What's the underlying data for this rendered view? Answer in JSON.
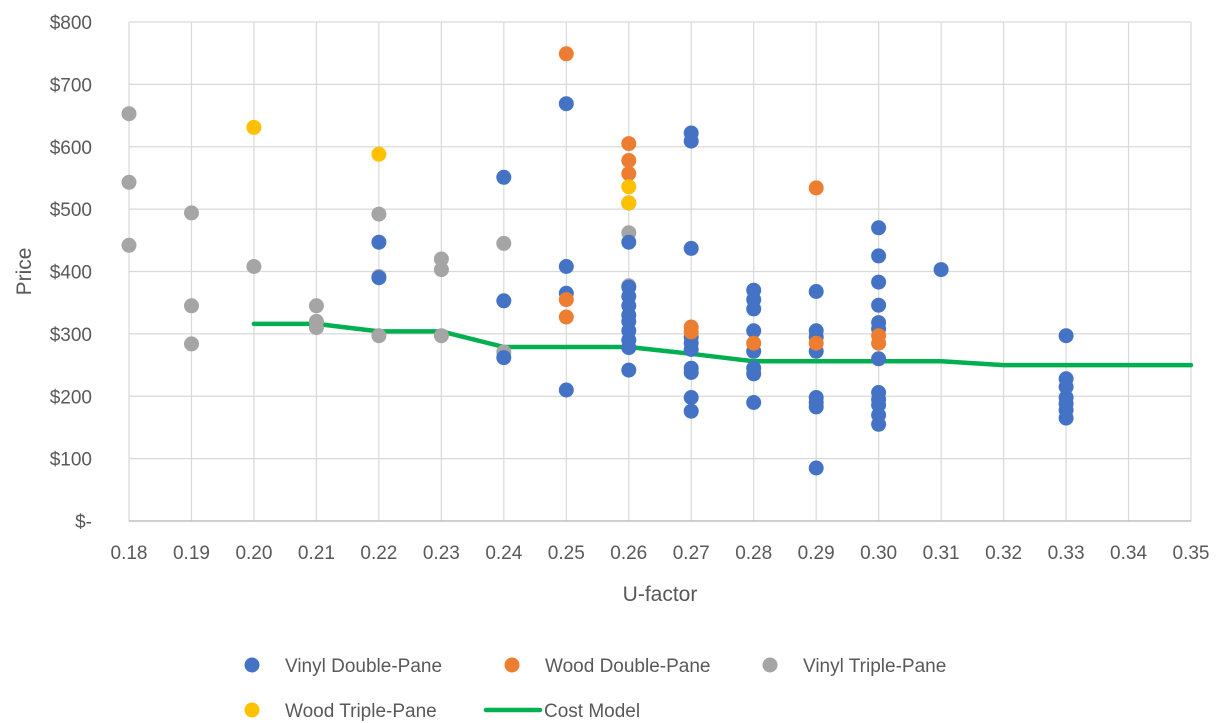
{
  "chart_data": {
    "type": "scatter",
    "title": "",
    "xlabel": "U-factor",
    "ylabel": "Price",
    "xlim": [
      0.18,
      0.35
    ],
    "ylim": [
      0,
      800
    ],
    "grid": true,
    "legend_position": "bottom",
    "x_ticks": [
      "0.18",
      "0.19",
      "0.20",
      "0.21",
      "0.22",
      "0.23",
      "0.24",
      "0.25",
      "0.26",
      "0.27",
      "0.28",
      "0.29",
      "0.30",
      "0.31",
      "0.32",
      "0.33",
      "0.34",
      "0.35"
    ],
    "y_ticks": [
      {
        "value": 0,
        "label": "$-"
      },
      {
        "value": 100,
        "label": "$100"
      },
      {
        "value": 200,
        "label": "$200"
      },
      {
        "value": 300,
        "label": "$300"
      },
      {
        "value": 400,
        "label": "$400"
      },
      {
        "value": 500,
        "label": "$500"
      },
      {
        "value": 600,
        "label": "$600"
      },
      {
        "value": 700,
        "label": "$700"
      },
      {
        "value": 800,
        "label": "$800"
      }
    ],
    "series": [
      {
        "name": "Vinyl Triple-Pane",
        "kind": "scatter",
        "color": "#a5a5a5",
        "points": [
          [
            0.18,
            653
          ],
          [
            0.18,
            543
          ],
          [
            0.18,
            442
          ],
          [
            0.19,
            494
          ],
          [
            0.19,
            345
          ],
          [
            0.19,
            284
          ],
          [
            0.2,
            408
          ],
          [
            0.21,
            345
          ],
          [
            0.21,
            320
          ],
          [
            0.21,
            310
          ],
          [
            0.22,
            492
          ],
          [
            0.22,
            392
          ],
          [
            0.22,
            297
          ],
          [
            0.23,
            420
          ],
          [
            0.23,
            403
          ],
          [
            0.23,
            297
          ],
          [
            0.24,
            445
          ],
          [
            0.24,
            271
          ],
          [
            0.26,
            462
          ],
          [
            0.26,
            377
          ]
        ]
      },
      {
        "name": "Vinyl Double-Pane",
        "kind": "scatter",
        "color": "#4472c4",
        "points": [
          [
            0.22,
            447
          ],
          [
            0.22,
            390
          ],
          [
            0.24,
            551
          ],
          [
            0.24,
            353
          ],
          [
            0.24,
            262
          ],
          [
            0.25,
            669
          ],
          [
            0.25,
            408
          ],
          [
            0.25,
            365
          ],
          [
            0.25,
            210
          ],
          [
            0.26,
            510
          ],
          [
            0.26,
            447
          ],
          [
            0.26,
            375
          ],
          [
            0.26,
            360
          ],
          [
            0.26,
            345
          ],
          [
            0.26,
            330
          ],
          [
            0.26,
            320
          ],
          [
            0.26,
            305
          ],
          [
            0.26,
            290
          ],
          [
            0.26,
            278
          ],
          [
            0.26,
            242
          ],
          [
            0.27,
            622
          ],
          [
            0.27,
            609
          ],
          [
            0.27,
            437
          ],
          [
            0.27,
            295
          ],
          [
            0.27,
            285
          ],
          [
            0.27,
            275
          ],
          [
            0.27,
            245
          ],
          [
            0.27,
            238
          ],
          [
            0.27,
            198
          ],
          [
            0.27,
            176
          ],
          [
            0.28,
            370
          ],
          [
            0.28,
            355
          ],
          [
            0.28,
            340
          ],
          [
            0.28,
            305
          ],
          [
            0.28,
            272
          ],
          [
            0.28,
            245
          ],
          [
            0.28,
            236
          ],
          [
            0.28,
            190
          ],
          [
            0.29,
            368
          ],
          [
            0.29,
            305
          ],
          [
            0.29,
            295
          ],
          [
            0.29,
            272
          ],
          [
            0.29,
            198
          ],
          [
            0.29,
            190
          ],
          [
            0.29,
            183
          ],
          [
            0.29,
            85
          ],
          [
            0.3,
            470
          ],
          [
            0.3,
            425
          ],
          [
            0.3,
            383
          ],
          [
            0.3,
            346
          ],
          [
            0.3,
            318
          ],
          [
            0.3,
            308
          ],
          [
            0.3,
            260
          ],
          [
            0.3,
            206
          ],
          [
            0.3,
            195
          ],
          [
            0.3,
            186
          ],
          [
            0.3,
            170
          ],
          [
            0.3,
            155
          ],
          [
            0.31,
            403
          ],
          [
            0.33,
            297
          ],
          [
            0.33,
            228
          ],
          [
            0.33,
            215
          ],
          [
            0.33,
            198
          ],
          [
            0.33,
            188
          ],
          [
            0.33,
            178
          ],
          [
            0.33,
            165
          ]
        ]
      },
      {
        "name": "Wood Double-Pane",
        "kind": "scatter",
        "color": "#ed7d31",
        "points": [
          [
            0.25,
            749
          ],
          [
            0.25,
            355
          ],
          [
            0.25,
            327
          ],
          [
            0.26,
            605
          ],
          [
            0.26,
            578
          ],
          [
            0.26,
            557
          ],
          [
            0.27,
            311
          ],
          [
            0.27,
            303
          ],
          [
            0.28,
            285
          ],
          [
            0.29,
            534
          ],
          [
            0.29,
            285
          ],
          [
            0.3,
            297
          ],
          [
            0.3,
            285
          ]
        ]
      },
      {
        "name": "Wood Triple-Pane",
        "kind": "scatter",
        "color": "#ffc000",
        "points": [
          [
            0.2,
            631
          ],
          [
            0.22,
            588
          ],
          [
            0.26,
            536
          ],
          [
            0.26,
            510
          ]
        ]
      },
      {
        "name": "Cost Model",
        "kind": "line",
        "color": "#00b050",
        "points": [
          [
            0.2,
            316
          ],
          [
            0.21,
            316
          ],
          [
            0.22,
            304
          ],
          [
            0.23,
            304
          ],
          [
            0.24,
            279
          ],
          [
            0.25,
            279
          ],
          [
            0.26,
            279
          ],
          [
            0.27,
            268
          ],
          [
            0.28,
            256
          ],
          [
            0.29,
            256
          ],
          [
            0.3,
            256
          ],
          [
            0.31,
            256
          ],
          [
            0.32,
            250
          ],
          [
            0.33,
            250
          ],
          [
            0.34,
            250
          ],
          [
            0.35,
            250
          ]
        ]
      }
    ],
    "legend": [
      {
        "label": "Vinyl Double-Pane",
        "series": "Vinyl Double-Pane"
      },
      {
        "label": "Wood Double-Pane",
        "series": "Wood Double-Pane"
      },
      {
        "label": "Vinyl Triple-Pane",
        "series": "Vinyl Triple-Pane"
      },
      {
        "label": "Wood Triple-Pane",
        "series": "Wood Triple-Pane"
      },
      {
        "label": "Cost Model",
        "series": "Cost Model"
      }
    ]
  }
}
